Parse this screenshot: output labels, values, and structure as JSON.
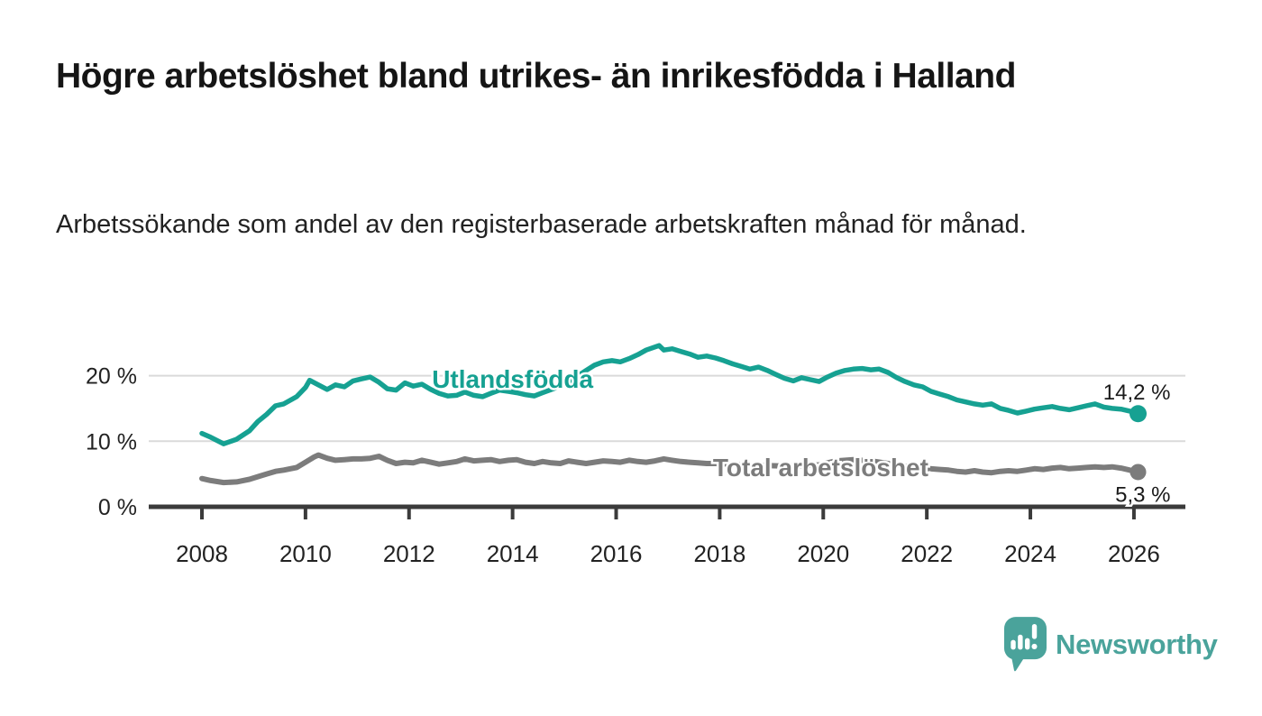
{
  "page": {
    "background": "#ffffff"
  },
  "header": {
    "title": "Högre arbetslöshet bland utrikes- än inrikesfödda i Halland",
    "subtitle": "Arbetssökande som andel av den registerbaserade arbetskraften månad för månad."
  },
  "footer": {
    "brand": "Newsworthy",
    "logo_icon": "bar-chart-speech-bubble-icon",
    "brand_color": "#4AA39B"
  },
  "chart_data": {
    "type": "line",
    "title": "Högre arbetslöshet bland utrikes- än inrikesfödda i Halland",
    "subtitle": "Arbetssökande som andel av den registerbaserade arbetskraften månad för månad.",
    "y_unit": "percent",
    "x_unit": "year (monthly observations)",
    "grid": "horizontal",
    "legend_position": "inline-labels",
    "ylim": [
      0,
      26
    ],
    "x_range": [
      2007,
      2027
    ],
    "x_ticks": [
      2008,
      2010,
      2012,
      2014,
      2016,
      2018,
      2020,
      2022,
      2024,
      2026
    ],
    "y_ticks": [
      {
        "value": 0,
        "label": "0 %"
      },
      {
        "value": 10,
        "label": "10 %"
      },
      {
        "value": 20,
        "label": "20 %"
      }
    ],
    "axis_color": "#3B3B3B",
    "grid_color": "#DADADA",
    "tick_label_color": "#222222",
    "end_label_color": "#1A1A1A",
    "series": [
      {
        "name": "Utlandsfödda",
        "color": "#16A192",
        "end_label": "14,2 %",
        "end_value": 14.2,
        "end_label_position": "above",
        "label_anchor": {
          "year": 2014.0,
          "value": 19.5
        },
        "points": [
          [
            2008.0,
            11.2
          ],
          [
            2008.17,
            10.6
          ],
          [
            2008.42,
            9.6
          ],
          [
            2008.67,
            10.3
          ],
          [
            2008.92,
            11.6
          ],
          [
            2009.08,
            13.0
          ],
          [
            2009.25,
            14.1
          ],
          [
            2009.42,
            15.4
          ],
          [
            2009.58,
            15.7
          ],
          [
            2009.83,
            16.8
          ],
          [
            2010.0,
            18.2
          ],
          [
            2010.08,
            19.3
          ],
          [
            2010.25,
            18.6
          ],
          [
            2010.42,
            17.9
          ],
          [
            2010.58,
            18.6
          ],
          [
            2010.75,
            18.3
          ],
          [
            2010.92,
            19.2
          ],
          [
            2011.08,
            19.5
          ],
          [
            2011.25,
            19.8
          ],
          [
            2011.42,
            19.0
          ],
          [
            2011.58,
            18.0
          ],
          [
            2011.75,
            17.8
          ],
          [
            2011.92,
            18.9
          ],
          [
            2012.08,
            18.4
          ],
          [
            2012.25,
            18.7
          ],
          [
            2012.42,
            17.9
          ],
          [
            2012.58,
            17.3
          ],
          [
            2012.75,
            16.9
          ],
          [
            2012.92,
            17.0
          ],
          [
            2013.08,
            17.5
          ],
          [
            2013.25,
            17.0
          ],
          [
            2013.42,
            16.8
          ],
          [
            2013.58,
            17.3
          ],
          [
            2013.75,
            17.8
          ],
          [
            2013.92,
            17.6
          ],
          [
            2014.08,
            17.4
          ],
          [
            2014.25,
            17.1
          ],
          [
            2014.42,
            16.9
          ],
          [
            2014.58,
            17.4
          ],
          [
            2014.75,
            17.9
          ],
          [
            2014.92,
            18.4
          ],
          [
            2015.08,
            19.1
          ],
          [
            2015.25,
            19.9
          ],
          [
            2015.42,
            20.8
          ],
          [
            2015.58,
            21.6
          ],
          [
            2015.75,
            22.1
          ],
          [
            2015.92,
            22.3
          ],
          [
            2016.08,
            22.1
          ],
          [
            2016.25,
            22.6
          ],
          [
            2016.42,
            23.2
          ],
          [
            2016.58,
            23.9
          ],
          [
            2016.83,
            24.6
          ],
          [
            2016.92,
            23.9
          ],
          [
            2017.08,
            24.1
          ],
          [
            2017.25,
            23.7
          ],
          [
            2017.42,
            23.3
          ],
          [
            2017.58,
            22.8
          ],
          [
            2017.75,
            23.0
          ],
          [
            2017.92,
            22.7
          ],
          [
            2018.08,
            22.3
          ],
          [
            2018.25,
            21.8
          ],
          [
            2018.42,
            21.4
          ],
          [
            2018.58,
            21.0
          ],
          [
            2018.75,
            21.3
          ],
          [
            2018.92,
            20.8
          ],
          [
            2019.08,
            20.2
          ],
          [
            2019.25,
            19.6
          ],
          [
            2019.42,
            19.2
          ],
          [
            2019.58,
            19.7
          ],
          [
            2019.75,
            19.4
          ],
          [
            2019.92,
            19.1
          ],
          [
            2020.08,
            19.8
          ],
          [
            2020.25,
            20.4
          ],
          [
            2020.42,
            20.8
          ],
          [
            2020.58,
            21.0
          ],
          [
            2020.75,
            21.1
          ],
          [
            2020.92,
            20.9
          ],
          [
            2021.08,
            21.0
          ],
          [
            2021.25,
            20.5
          ],
          [
            2021.42,
            19.7
          ],
          [
            2021.58,
            19.1
          ],
          [
            2021.75,
            18.6
          ],
          [
            2021.92,
            18.3
          ],
          [
            2022.08,
            17.6
          ],
          [
            2022.25,
            17.2
          ],
          [
            2022.42,
            16.8
          ],
          [
            2022.58,
            16.3
          ],
          [
            2022.75,
            16.0
          ],
          [
            2022.92,
            15.7
          ],
          [
            2023.08,
            15.5
          ],
          [
            2023.25,
            15.7
          ],
          [
            2023.42,
            15.0
          ],
          [
            2023.58,
            14.7
          ],
          [
            2023.75,
            14.3
          ],
          [
            2023.92,
            14.6
          ],
          [
            2024.08,
            14.9
          ],
          [
            2024.25,
            15.1
          ],
          [
            2024.42,
            15.3
          ],
          [
            2024.58,
            15.0
          ],
          [
            2024.75,
            14.8
          ],
          [
            2024.92,
            15.1
          ],
          [
            2025.08,
            15.4
          ],
          [
            2025.25,
            15.7
          ],
          [
            2025.42,
            15.2
          ],
          [
            2025.58,
            15.0
          ],
          [
            2025.75,
            14.9
          ],
          [
            2025.92,
            14.6
          ],
          [
            2026.08,
            14.2
          ]
        ]
      },
      {
        "name": "Total arbetslöshet",
        "color": "#7C7C7C",
        "end_label": "5,3 %",
        "end_value": 5.3,
        "end_label_position": "below",
        "label_anchor": {
          "year": 2019.95,
          "value": 6.05
        },
        "points": [
          [
            2008.0,
            4.3
          ],
          [
            2008.17,
            4.0
          ],
          [
            2008.42,
            3.7
          ],
          [
            2008.67,
            3.8
          ],
          [
            2008.92,
            4.2
          ],
          [
            2009.08,
            4.6
          ],
          [
            2009.25,
            5.0
          ],
          [
            2009.42,
            5.4
          ],
          [
            2009.58,
            5.6
          ],
          [
            2009.83,
            6.0
          ],
          [
            2010.0,
            6.8
          ],
          [
            2010.17,
            7.6
          ],
          [
            2010.25,
            7.9
          ],
          [
            2010.42,
            7.4
          ],
          [
            2010.58,
            7.1
          ],
          [
            2010.75,
            7.2
          ],
          [
            2010.92,
            7.3
          ],
          [
            2011.08,
            7.3
          ],
          [
            2011.25,
            7.4
          ],
          [
            2011.42,
            7.7
          ],
          [
            2011.58,
            7.1
          ],
          [
            2011.75,
            6.6
          ],
          [
            2011.92,
            6.8
          ],
          [
            2012.08,
            6.7
          ],
          [
            2012.25,
            7.1
          ],
          [
            2012.42,
            6.8
          ],
          [
            2012.58,
            6.5
          ],
          [
            2012.75,
            6.7
          ],
          [
            2012.92,
            6.9
          ],
          [
            2013.08,
            7.3
          ],
          [
            2013.25,
            7.0
          ],
          [
            2013.42,
            7.1
          ],
          [
            2013.58,
            7.2
          ],
          [
            2013.75,
            6.9
          ],
          [
            2013.92,
            7.1
          ],
          [
            2014.08,
            7.2
          ],
          [
            2014.25,
            6.8
          ],
          [
            2014.42,
            6.6
          ],
          [
            2014.58,
            6.9
          ],
          [
            2014.75,
            6.7
          ],
          [
            2014.92,
            6.6
          ],
          [
            2015.08,
            7.0
          ],
          [
            2015.25,
            6.8
          ],
          [
            2015.42,
            6.6
          ],
          [
            2015.58,
            6.8
          ],
          [
            2015.75,
            7.0
          ],
          [
            2015.92,
            6.9
          ],
          [
            2016.08,
            6.8
          ],
          [
            2016.25,
            7.1
          ],
          [
            2016.42,
            6.9
          ],
          [
            2016.58,
            6.8
          ],
          [
            2016.75,
            7.0
          ],
          [
            2016.92,
            7.3
          ],
          [
            2017.08,
            7.1
          ],
          [
            2017.25,
            6.9
          ],
          [
            2017.42,
            6.8
          ],
          [
            2017.58,
            6.7
          ],
          [
            2017.75,
            6.6
          ],
          [
            2017.92,
            6.6
          ],
          [
            2018.25,
            6.5
          ],
          [
            2018.58,
            6.4
          ],
          [
            2018.92,
            6.3
          ],
          [
            2019.25,
            6.2
          ],
          [
            2019.58,
            6.3
          ],
          [
            2019.92,
            6.4
          ],
          [
            2020.25,
            7.0
          ],
          [
            2020.58,
            7.2
          ],
          [
            2020.92,
            7.0
          ],
          [
            2021.25,
            6.6
          ],
          [
            2021.58,
            6.2
          ],
          [
            2021.92,
            5.9
          ],
          [
            2022.25,
            5.7
          ],
          [
            2022.42,
            5.6
          ],
          [
            2022.58,
            5.4
          ],
          [
            2022.75,
            5.3
          ],
          [
            2022.92,
            5.5
          ],
          [
            2023.08,
            5.3
          ],
          [
            2023.25,
            5.2
          ],
          [
            2023.42,
            5.4
          ],
          [
            2023.58,
            5.5
          ],
          [
            2023.75,
            5.4
          ],
          [
            2023.92,
            5.6
          ],
          [
            2024.08,
            5.8
          ],
          [
            2024.25,
            5.7
          ],
          [
            2024.42,
            5.9
          ],
          [
            2024.58,
            6.0
          ],
          [
            2024.75,
            5.8
          ],
          [
            2024.92,
            5.9
          ],
          [
            2025.08,
            6.0
          ],
          [
            2025.25,
            6.1
          ],
          [
            2025.42,
            6.0
          ],
          [
            2025.58,
            6.1
          ],
          [
            2025.75,
            5.9
          ],
          [
            2025.92,
            5.6
          ],
          [
            2026.08,
            5.3
          ]
        ]
      }
    ]
  }
}
